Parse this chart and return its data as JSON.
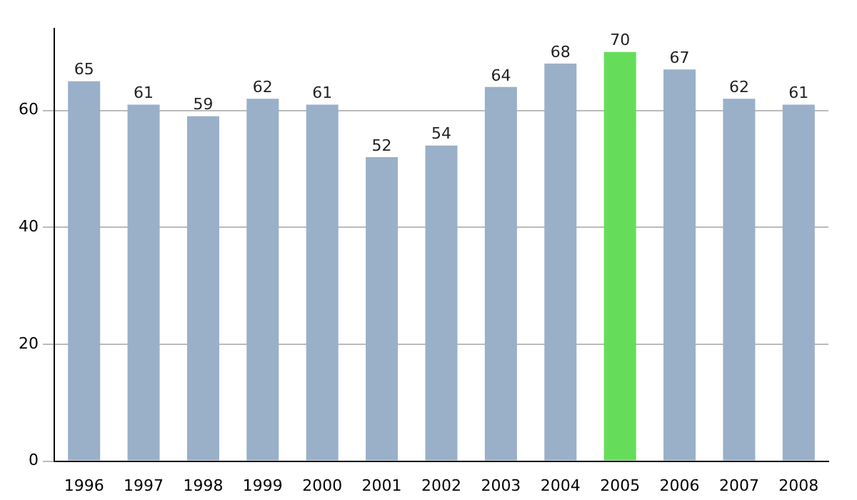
{
  "chart_data": {
    "type": "bar",
    "categories": [
      "1996",
      "1997",
      "1998",
      "1999",
      "2000",
      "2001",
      "2002",
      "2003",
      "2004",
      "2005",
      "2006",
      "2007",
      "2008"
    ],
    "values": [
      65,
      61,
      59,
      62,
      61,
      52,
      54,
      64,
      68,
      70,
      67,
      62,
      61
    ],
    "colors": [
      "#9ab0c8",
      "#9ab0c8",
      "#9ab0c8",
      "#9ab0c8",
      "#9ab0c8",
      "#9ab0c8",
      "#9ab0c8",
      "#9ab0c8",
      "#9ab0c8",
      "#66dd5a",
      "#9ab0c8",
      "#9ab0c8",
      "#9ab0c8"
    ],
    "ylim": [
      0,
      74
    ],
    "yticks": [
      0,
      20,
      40,
      60
    ],
    "grid": "y",
    "data_labels": true
  }
}
